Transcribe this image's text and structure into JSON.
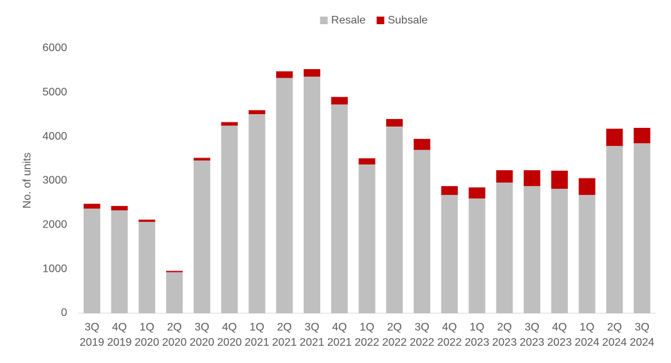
{
  "chart_data": {
    "type": "stacked_bar",
    "y_label": "No. of units",
    "categories": [
      "3Q 2019",
      "4Q 2019",
      "1Q 2020",
      "2Q 2020",
      "3Q 2020",
      "4Q 2020",
      "1Q 2021",
      "2Q 2021",
      "3Q 2021",
      "4Q 2021",
      "1Q 2022",
      "2Q 2022",
      "3Q 2022",
      "4Q 2022",
      "1Q 2023",
      "2Q 2023",
      "3Q 2023",
      "4Q 2023",
      "1Q 2024",
      "2Q 2024",
      "3Q 2024"
    ],
    "series": [
      {
        "name": "Resale",
        "color": "#bfbfbf",
        "values": [
          2370,
          2330,
          2070,
          930,
          3460,
          4250,
          4510,
          5330,
          5360,
          4730,
          3370,
          4230,
          3700,
          2680,
          2600,
          2960,
          2880,
          2820,
          2680,
          3790,
          3850
        ]
      },
      {
        "name": "Subsale",
        "color": "#c00000",
        "values": [
          110,
          100,
          50,
          30,
          60,
          80,
          90,
          150,
          170,
          170,
          140,
          170,
          250,
          200,
          250,
          280,
          360,
          410,
          380,
          390,
          350
        ]
      }
    ],
    "ylim": [
      0,
      6000
    ],
    "yticks": [
      0,
      1000,
      2000,
      3000,
      4000,
      5000,
      6000
    ],
    "legend": "top",
    "grid": false
  }
}
